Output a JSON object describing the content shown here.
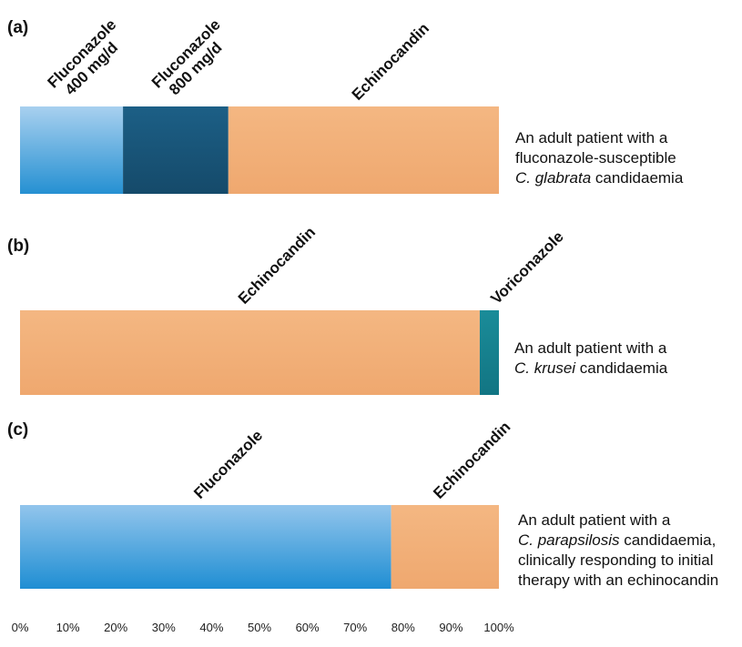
{
  "chart_data": {
    "type": "bar",
    "orientation": "horizontal-stacked",
    "xlim": [
      0,
      100
    ],
    "x_ticks": [
      "0%",
      "10%",
      "20%",
      "30%",
      "40%",
      "50%",
      "60%",
      "70%",
      "80%",
      "90%",
      "100%"
    ],
    "grid": false,
    "colors": {
      "Fluconazole 400 mg/d": "#5aaee0",
      "Fluconazole 800 mg/d": "#1b5a7f",
      "Echinocandin": "#f2b07a",
      "Voriconazole": "#15828f",
      "Fluconazole": "#3a9ad8"
    },
    "panels": [
      {
        "label": "(a)",
        "segments": [
          {
            "name": "Fluconazole 400 mg/d",
            "name_lines": [
              "Fluconazole",
              "400 mg/d"
            ],
            "value": 21.5
          },
          {
            "name": "Fluconazole 800 mg/d",
            "name_lines": [
              "Fluconazole",
              "800 mg/d"
            ],
            "value": 22
          },
          {
            "name": "Echinocandin",
            "name_lines": [
              "Echinocandin"
            ],
            "value": 56.5
          }
        ],
        "description": [
          {
            "text": "An adult patient with a"
          },
          {
            "text": "fluconazole-susceptible"
          },
          {
            "italic": "C. glabrata",
            "text": " candidaemia"
          }
        ]
      },
      {
        "label": "(b)",
        "segments": [
          {
            "name": "Echinocandin",
            "name_lines": [
              "Echinocandin"
            ],
            "value": 96
          },
          {
            "name": "Voriconazole",
            "name_lines": [
              "Voriconazole"
            ],
            "value": 4
          }
        ],
        "description": [
          {
            "text": "An adult patient with a"
          },
          {
            "italic": "C. krusei",
            "text": " candidaemia"
          }
        ]
      },
      {
        "label": "(c)",
        "segments": [
          {
            "name": "Fluconazole",
            "name_lines": [
              "Fluconazole"
            ],
            "value": 77.5
          },
          {
            "name": "Echinocandin",
            "name_lines": [
              "Echinocandin"
            ],
            "value": 22.5
          }
        ],
        "description": [
          {
            "text": "An adult patient with a"
          },
          {
            "italic": "C. parapsilosis",
            "text": " candidaemia,"
          },
          {
            "text": "clinically responding to initial"
          },
          {
            "text": "therapy with an echinocandin"
          }
        ]
      }
    ]
  }
}
